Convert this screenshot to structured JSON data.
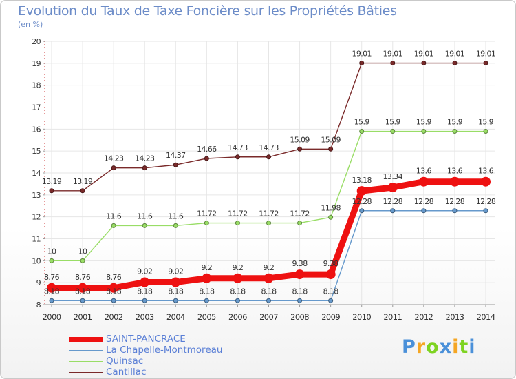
{
  "chart_data": {
    "type": "line",
    "title": "Evolution du Taux de Taxe Foncière sur les Propriétés Bâties",
    "subtitle": "(en %)",
    "xlabel": "",
    "ylabel": "(en %)",
    "x": [
      "2000",
      "2001",
      "2002",
      "2003",
      "2004",
      "2005",
      "2006",
      "2007",
      "2008",
      "2009",
      "2010",
      "2011",
      "2012",
      "2013",
      "2014"
    ],
    "ylim": [
      8,
      20
    ],
    "yticks": [
      "8",
      "9",
      "10",
      "11",
      "12",
      "13",
      "14",
      "15",
      "16",
      "17",
      "18",
      "19",
      "20"
    ],
    "series": [
      {
        "name": "Cantillac",
        "color": "#7a2a2a",
        "bold": false,
        "values": [
          13.19,
          13.19,
          14.23,
          14.23,
          14.37,
          14.66,
          14.73,
          14.73,
          15.09,
          15.09,
          19.01,
          19.01,
          19.01,
          19.01,
          19.01
        ],
        "labels": [
          "13.19",
          "13.19",
          "14.23",
          "14.23",
          "14.37",
          "14.66",
          "14.73",
          "14.73",
          "15.09",
          "15.09",
          "19.01",
          "19.01",
          "19.01",
          "19.01",
          "19.01"
        ]
      },
      {
        "name": "Quinsac",
        "color": "#99dd66",
        "bold": false,
        "values": [
          10,
          10,
          11.6,
          11.6,
          11.6,
          11.72,
          11.72,
          11.72,
          11.72,
          11.98,
          15.9,
          15.9,
          15.9,
          15.9,
          15.9
        ],
        "labels": [
          "10",
          "10",
          "11.6",
          "11.6",
          "11.6",
          "11.72",
          "11.72",
          "11.72",
          "11.72",
          "11.98",
          "15.9",
          "15.9",
          "15.9",
          "15.9",
          "15.9"
        ]
      },
      {
        "name": "La Chapelle-Montmoreau",
        "color": "#6699cc",
        "bold": false,
        "values": [
          8.18,
          8.18,
          8.18,
          8.18,
          8.18,
          8.18,
          8.18,
          8.18,
          8.18,
          8.18,
          12.28,
          12.28,
          12.28,
          12.28,
          12.28
        ],
        "labels": [
          "8.18",
          "8.18",
          "8.18",
          "8.18",
          "8.18",
          "8.18",
          "8.18",
          "8.18",
          "8.18",
          "8.18",
          "12.28",
          "12.28",
          "12.28",
          "12.28",
          "12.28"
        ]
      },
      {
        "name": "SAINT-PANCRACE",
        "color": "#ee1111",
        "bold": true,
        "values": [
          8.76,
          8.76,
          8.76,
          9.02,
          9.02,
          9.2,
          9.2,
          9.2,
          9.38,
          9.38,
          13.18,
          13.34,
          13.6,
          13.6,
          13.6
        ],
        "labels": [
          "8.76",
          "8.76",
          "8.76",
          "9.02",
          "9.02",
          "9.2",
          "9.2",
          "9.2",
          "9.38",
          "9.38",
          "13.18",
          "13.34",
          "13.6",
          "13.6",
          "13.6"
        ]
      }
    ],
    "legend": [
      "SAINT-PANCRACE",
      "La Chapelle-Montmoreau",
      "Quinsac",
      "Cantillac"
    ]
  },
  "logo": {
    "letters": [
      "P",
      "r",
      "o",
      "x",
      "i",
      "t",
      "i"
    ],
    "colors": [
      "#4a90d9",
      "#f5a623",
      "#7ed321",
      "#4a90d9",
      "#f5a623",
      "#7ed321",
      "#4a90d9"
    ]
  }
}
